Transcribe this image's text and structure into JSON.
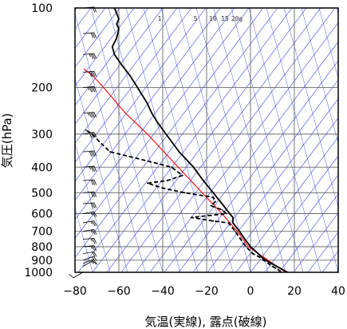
{
  "chart_data": {
    "type": "skew-t",
    "title": "",
    "xlabel": "気温(実線), 露点(破線)",
    "ylabel": "気圧(hPa)",
    "xlim": [
      -80,
      40
    ],
    "ylim": [
      1000,
      100
    ],
    "y_scale": "log",
    "x_ticks": [
      -80,
      -60,
      -40,
      -20,
      0,
      20,
      40
    ],
    "x_tick_labels": [
      "−80",
      "−60",
      "−40",
      "−20",
      "0",
      "20",
      "40"
    ],
    "y_ticks": [
      100,
      200,
      300,
      400,
      500,
      600,
      700,
      800,
      900,
      1000
    ],
    "y_tick_labels": [
      "100",
      "200",
      "300",
      "400",
      "500",
      "600",
      "700",
      "800",
      "900",
      "1000"
    ],
    "grid": true,
    "mixing_ratio_labels": [
      "1",
      "5",
      "10",
      "15",
      "20g"
    ],
    "colors": {
      "temperature": "#000000",
      "dewpoint": "#000000",
      "reference": "#ff0000",
      "background_lines": "#2233dd",
      "grid": "#555555",
      "wind_barbs": "#000000"
    },
    "series": [
      {
        "style": "solid",
        "points": [
          {
            "p": 1000,
            "t": 17.0
          },
          {
            "p": 975,
            "t": 14.5
          },
          {
            "p": 950,
            "t": 12.0
          },
          {
            "p": 925,
            "t": 9.5
          },
          {
            "p": 900,
            "t": 7.0
          },
          {
            "p": 875,
            "t": 5.0
          },
          {
            "p": 850,
            "t": 3.5
          },
          {
            "p": 800,
            "t": 0.0
          },
          {
            "p": 750,
            "t": -2.5
          },
          {
            "p": 700,
            "t": -5.0
          },
          {
            "p": 650,
            "t": -8.0
          },
          {
            "p": 620,
            "t": -8.0
          },
          {
            "p": 600,
            "t": -9.5
          },
          {
            "p": 550,
            "t": -13.0
          },
          {
            "p": 500,
            "t": -17.0
          },
          {
            "p": 450,
            "t": -21.5
          },
          {
            "p": 400,
            "t": -26.0
          },
          {
            "p": 350,
            "t": -32.5
          },
          {
            "p": 300,
            "t": -38.5
          },
          {
            "p": 270,
            "t": -42.5
          },
          {
            "p": 250,
            "t": -45.0
          },
          {
            "p": 230,
            "t": -47.0
          },
          {
            "p": 200,
            "t": -51.5
          },
          {
            "p": 180,
            "t": -55.0
          },
          {
            "p": 165,
            "t": -58.5
          },
          {
            "p": 150,
            "t": -62.0
          },
          {
            "p": 140,
            "t": -63.0
          },
          {
            "p": 130,
            "t": -61.0
          },
          {
            "p": 120,
            "t": -60.0
          },
          {
            "p": 115,
            "t": -61.0
          },
          {
            "p": 110,
            "t": -60.0
          },
          {
            "p": 105,
            "t": -61.0
          },
          {
            "p": 100,
            "t": -62.0
          }
        ]
      },
      {
        "style": "dashed",
        "points": [
          {
            "p": 1000,
            "t": 14.0
          },
          {
            "p": 975,
            "t": 12.5
          },
          {
            "p": 950,
            "t": 10.0
          },
          {
            "p": 925,
            "t": 8.0
          },
          {
            "p": 900,
            "t": 6.0
          },
          {
            "p": 875,
            "t": 4.0
          },
          {
            "p": 850,
            "t": 1.0
          },
          {
            "p": 800,
            "t": -2.0
          },
          {
            "p": 750,
            "t": -4.5
          },
          {
            "p": 700,
            "t": -7.0
          },
          {
            "p": 650,
            "t": -10.0
          },
          {
            "p": 640,
            "t": -17.0
          },
          {
            "p": 620,
            "t": -27.0
          },
          {
            "p": 600,
            "t": -11.0
          },
          {
            "p": 580,
            "t": -13.0
          },
          {
            "p": 560,
            "t": -18.0
          },
          {
            "p": 540,
            "t": -16.0
          },
          {
            "p": 520,
            "t": -17.0
          },
          {
            "p": 500,
            "t": -30.0
          },
          {
            "p": 480,
            "t": -40.0
          },
          {
            "p": 460,
            "t": -47.0
          },
          {
            "p": 450,
            "t": -38.0
          },
          {
            "p": 430,
            "t": -31.0
          },
          {
            "p": 400,
            "t": -36.0
          },
          {
            "p": 370,
            "t": -52.0
          },
          {
            "p": 350,
            "t": -64.0
          },
          {
            "p": 320,
            "t": -69.0
          },
          {
            "p": 300,
            "t": -72.0
          },
          {
            "p": 290,
            "t": -75.0
          }
        ]
      }
    ],
    "reference_line": [
      {
        "p": 1000,
        "t": 16.0
      },
      {
        "p": 800,
        "t": -1.0
      },
      {
        "p": 700,
        "t": -6.0
      },
      {
        "p": 600,
        "t": -13.0
      },
      {
        "p": 500,
        "t": -22.0
      },
      {
        "p": 400,
        "t": -33.0
      },
      {
        "p": 300,
        "t": -47.0
      },
      {
        "p": 250,
        "t": -57.0
      },
      {
        "p": 200,
        "t": -67.0
      },
      {
        "p": 180,
        "t": -72.0
      },
      {
        "p": 170,
        "t": -76.0
      }
    ],
    "wind_barbs": [
      {
        "p": 1000,
        "speed": 10,
        "dir": 60
      },
      {
        "p": 950,
        "speed": 15,
        "dir": 240
      },
      {
        "p": 925,
        "speed": 15,
        "dir": 250
      },
      {
        "p": 900,
        "speed": 15,
        "dir": 250
      },
      {
        "p": 850,
        "speed": 20,
        "dir": 260
      },
      {
        "p": 800,
        "speed": 25,
        "dir": 265
      },
      {
        "p": 750,
        "speed": 25,
        "dir": 265
      },
      {
        "p": 700,
        "speed": 25,
        "dir": 260
      },
      {
        "p": 650,
        "speed": 25,
        "dir": 260
      },
      {
        "p": 600,
        "speed": 25,
        "dir": 260
      },
      {
        "p": 550,
        "speed": 30,
        "dir": 265
      },
      {
        "p": 500,
        "speed": 30,
        "dir": 265
      },
      {
        "p": 450,
        "speed": 30,
        "dir": 265
      },
      {
        "p": 400,
        "speed": 35,
        "dir": 265
      },
      {
        "p": 350,
        "speed": 40,
        "dir": 265
      },
      {
        "p": 300,
        "speed": 40,
        "dir": 260
      },
      {
        "p": 250,
        "speed": 45,
        "dir": 265
      },
      {
        "p": 200,
        "speed": 45,
        "dir": 265
      },
      {
        "p": 175,
        "speed": 40,
        "dir": 265
      },
      {
        "p": 150,
        "speed": 35,
        "dir": 265
      },
      {
        "p": 125,
        "speed": 30,
        "dir": 265
      },
      {
        "p": 100,
        "speed": 20,
        "dir": 265
      }
    ]
  }
}
